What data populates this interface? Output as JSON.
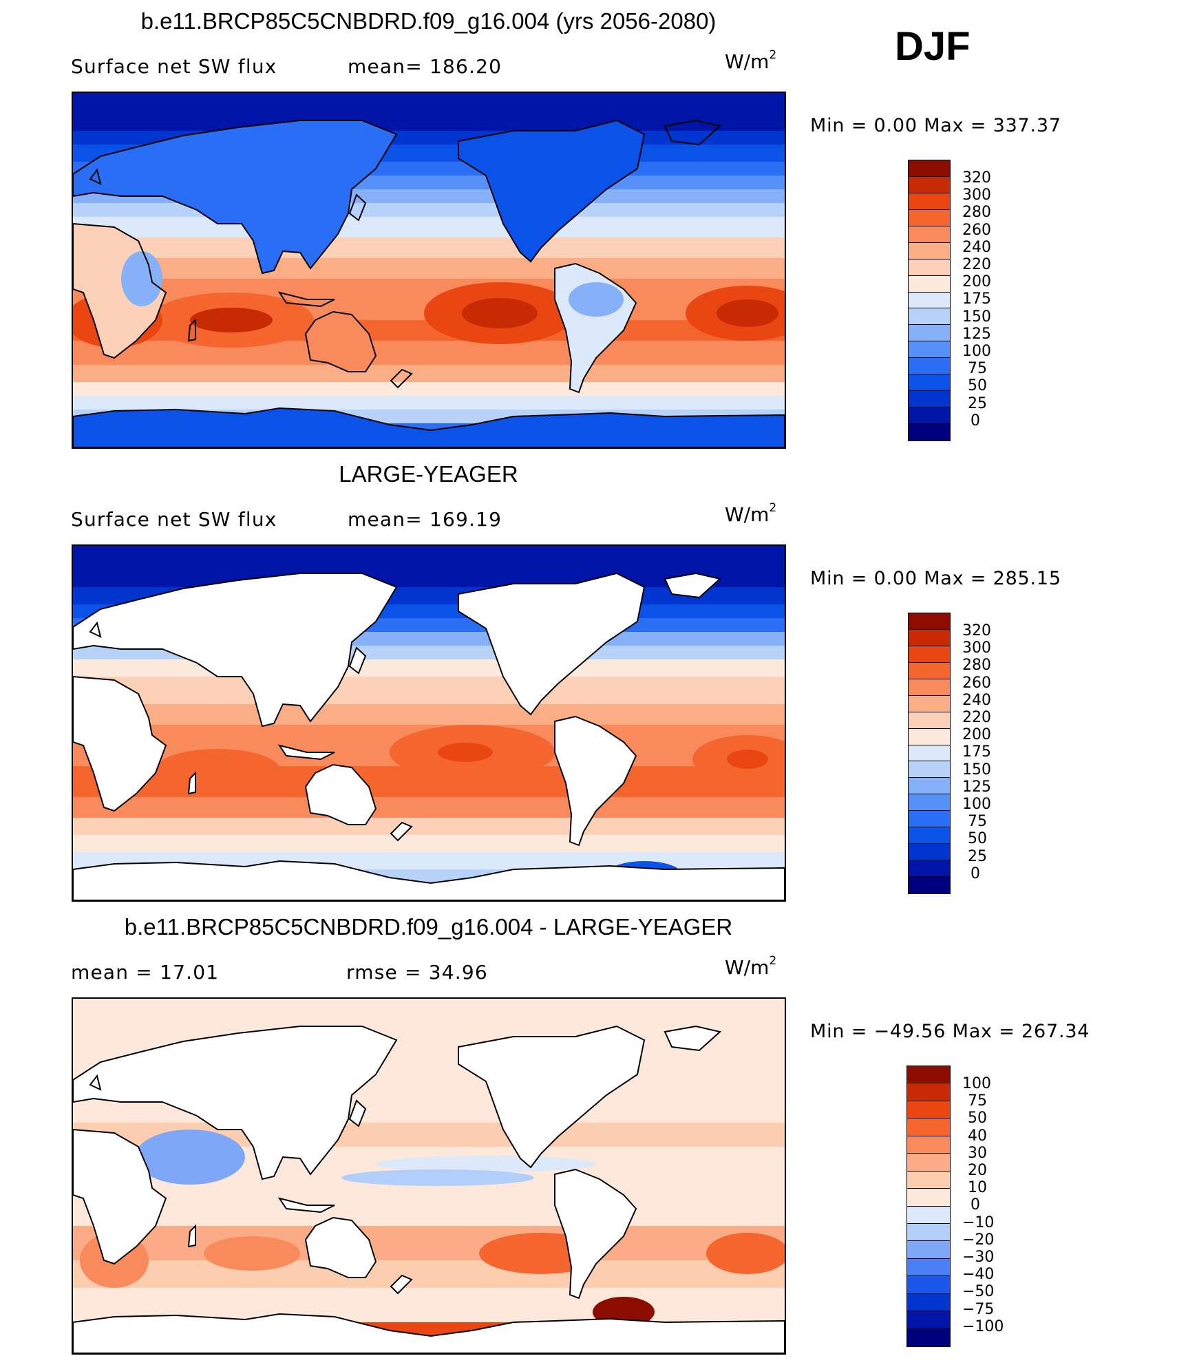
{
  "season": "DJF",
  "units_base": "W/m",
  "units_exp": "2",
  "colors": {
    "sw": [
      "#00007f",
      "#0015a8",
      "#0035cf",
      "#0a52e8",
      "#2a6ef5",
      "#5591f6",
      "#86b1f8",
      "#b7d3f9",
      "#dce9fb",
      "#fde9dc",
      "#fdd1b7",
      "#fbae86",
      "#f98a5c",
      "#f5662f",
      "#ea4612",
      "#c82a04",
      "#8c0c00"
    ],
    "diff": [
      "#00007f",
      "#0015a8",
      "#0035cf",
      "#1a57ea",
      "#4a7ff5",
      "#7ea7f8",
      "#b2cefa",
      "#dbe9fb",
      "#fde8db",
      "#fdcdb0",
      "#fbab85",
      "#f98a5c",
      "#f5662f",
      "#ea4612",
      "#c82a04",
      "#8c0c00"
    ]
  },
  "panels": [
    {
      "title": "b.e11.BRCP85C5CNBDRD.f09_g16.004 (yrs 2056-2080)",
      "left_text": "Surface net SW flux",
      "center_text": "mean=  186.20",
      "min_max": "Min  =      0.00  Max  =  337.37",
      "map_type": "model",
      "colorbar_labels": [
        "320",
        "300",
        "280",
        "260",
        "240",
        "220",
        "200",
        "175",
        "150",
        "125",
        "100",
        "75",
        "50",
        "25",
        "0"
      ]
    },
    {
      "title": "LARGE-YEAGER",
      "left_text": "Surface net SW flux",
      "center_text": "mean=  169.19",
      "min_max": "Min  =      0.00  Max  =  285.15",
      "map_type": "obs",
      "colorbar_labels": [
        "320",
        "300",
        "280",
        "260",
        "240",
        "220",
        "200",
        "175",
        "150",
        "125",
        "100",
        "75",
        "50",
        "25",
        "0"
      ]
    },
    {
      "title": "b.e11.BRCP85C5CNBDRD.f09_g16.004 - LARGE-YEAGER",
      "left_text": "mean  =    17.01",
      "center_text": "rmse  =    34.96",
      "min_max": "Min  = −49.56  Max  =  267.34",
      "map_type": "diff",
      "colorbar_labels": [
        "100",
        "75",
        "50",
        "40",
        "30",
        "20",
        "10",
        "0",
        "−10",
        "−20",
        "−30",
        "−40",
        "−50",
        "−75",
        "−100"
      ]
    }
  ]
}
